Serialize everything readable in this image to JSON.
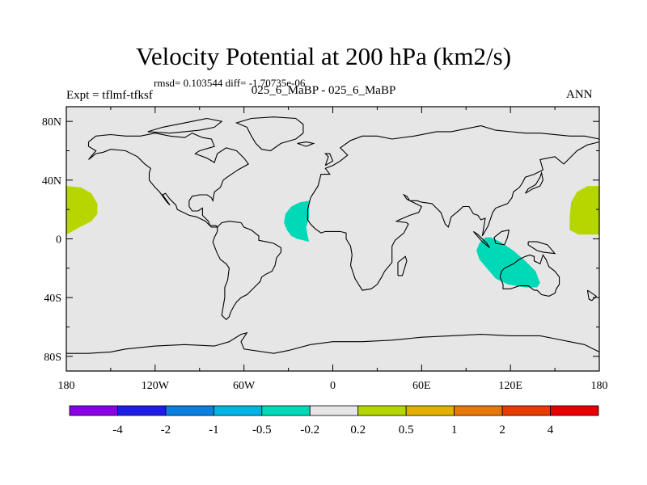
{
  "title": "Velocity Potential at 200 hPa (km2/s)",
  "stats": "rmsd= 0.103544 diff= -1.70735e-06",
  "experiment": "Expt = tflmf-tfksf",
  "panel_title": "025_6_MaBP - 025_6_MaBP",
  "season": "ANN",
  "colors": {
    "ocean": "#e6e6e6",
    "positive_fill": "#b7d600",
    "negative_fill": "#00d9b7",
    "coast": "#000000"
  },
  "chart_data": {
    "type": "heatmap",
    "projection": "cylindrical equidistant",
    "xlim": [
      -180,
      180
    ],
    "ylim": [
      -90,
      90
    ],
    "x_ticks": [
      {
        "lon": -180,
        "label": "180"
      },
      {
        "lon": -120,
        "label": "120W"
      },
      {
        "lon": -60,
        "label": "60W"
      },
      {
        "lon": 0,
        "label": "0"
      },
      {
        "lon": 60,
        "label": "60E"
      },
      {
        "lon": 120,
        "label": "120E"
      },
      {
        "lon": 180,
        "label": "180"
      }
    ],
    "y_ticks": [
      {
        "lat": 80,
        "label": "80N"
      },
      {
        "lat": 40,
        "label": "40N"
      },
      {
        "lat": 0,
        "label": "0"
      },
      {
        "lat": -40,
        "label": "40S"
      },
      {
        "lat": -80,
        "label": "80S"
      }
    ],
    "colorbar": {
      "colors": [
        "#8a00e6",
        "#1d1de6",
        "#0a7fe0",
        "#00b4e6",
        "#00d9b7",
        "#e6e6e6",
        "#b7d600",
        "#e3b000",
        "#e6780a",
        "#e63c00",
        "#e60000"
      ],
      "labels": [
        "-4",
        "-2",
        "-1",
        "-0.5",
        "-0.2",
        "0.2",
        "0.5",
        "1",
        "2",
        "4"
      ]
    },
    "anomaly_regions": [
      {
        "name": "central-pacific-positive",
        "sign": "positive",
        "lon": [
          -180,
          -160
        ],
        "lat": [
          2,
          36
        ]
      },
      {
        "name": "atlantic-negative",
        "sign": "negative",
        "lon": [
          -33,
          -15
        ],
        "lat": [
          -2,
          27
        ]
      },
      {
        "name": "indian-ocean-negative",
        "sign": "negative",
        "lon": [
          97,
          140
        ],
        "lat": [
          -33,
          1
        ]
      }
    ]
  }
}
